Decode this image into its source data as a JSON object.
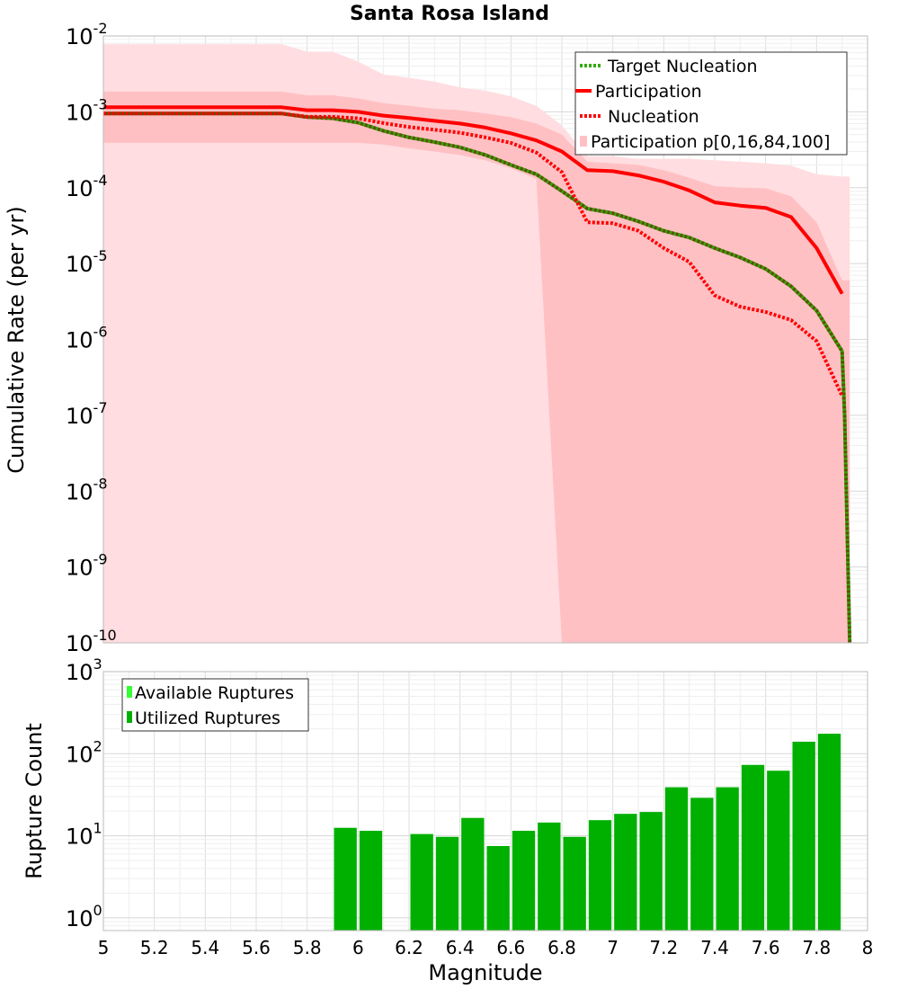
{
  "chart_data": [
    {
      "type": "line",
      "title": "Santa Rosa Island",
      "xlabel": "Magnitude",
      "ylabel": "Cumulative Rate (per yr)",
      "yscale": "log",
      "xlim": [
        5,
        8
      ],
      "ylim": [
        1e-10,
        0.01
      ],
      "x_ticks": [
        "5",
        "5.2",
        "5.4",
        "5.6",
        "5.8",
        "6",
        "6.2",
        "6.4",
        "6.6",
        "6.8",
        "7",
        "7.2",
        "7.4",
        "7.6",
        "7.8",
        "8"
      ],
      "y_ticks": [
        {
          "base": "10",
          "exp": "-10"
        },
        {
          "base": "10",
          "exp": "-9"
        },
        {
          "base": "10",
          "exp": "-8"
        },
        {
          "base": "10",
          "exp": "-7"
        },
        {
          "base": "10",
          "exp": "-6"
        },
        {
          "base": "10",
          "exp": "-5"
        },
        {
          "base": "10",
          "exp": "-4"
        },
        {
          "base": "10",
          "exp": "-3"
        },
        {
          "base": "10",
          "exp": "-2"
        }
      ],
      "grid": true,
      "legend_position": "top-right",
      "legend": [
        "Target Nucleation",
        "Participation",
        "Nucleation",
        "Participation p[0,16,84,100]"
      ],
      "x": [
        5.0,
        5.1,
        5.2,
        5.3,
        5.4,
        5.5,
        5.6,
        5.7,
        5.8,
        5.9,
        6.0,
        6.1,
        6.2,
        6.3,
        6.4,
        6.5,
        6.6,
        6.7,
        6.8,
        6.9,
        7.0,
        7.1,
        7.2,
        7.3,
        7.4,
        7.5,
        7.6,
        7.7,
        7.8,
        7.9
      ],
      "series": [
        {
          "name": "Target Nucleation",
          "style": "dotted",
          "color": "#33aa00",
          "values": [
            0.00095,
            0.00095,
            0.00095,
            0.00095,
            0.00095,
            0.00095,
            0.00095,
            0.00095,
            0.00085,
            0.00082,
            0.00072,
            0.00056,
            0.00046,
            0.0004,
            0.00034,
            0.00027,
            0.0002,
            0.00015,
            9e-05,
            5.3e-05,
            4.6e-05,
            3.6e-05,
            2.7e-05,
            2.2e-05,
            1.6e-05,
            1.2e-05,
            8.5e-06,
            5e-06,
            2.4e-06,
            7e-07
          ],
          "tail": [
            {
              "x": 7.9,
              "y": 7e-07
            },
            {
              "x": 7.91,
              "y": 1e-07
            },
            {
              "x": 7.93,
              "y": 1e-10
            }
          ]
        },
        {
          "name": "Participation",
          "style": "solid",
          "color": "#ff0000",
          "values": [
            0.00115,
            0.00115,
            0.00115,
            0.00115,
            0.00115,
            0.00115,
            0.00115,
            0.00115,
            0.00105,
            0.00105,
            0.001,
            0.00089,
            0.00083,
            0.00076,
            0.0007,
            0.00062,
            0.00052,
            0.00042,
            0.0003,
            0.00017,
            0.000165,
            0.000145,
            0.00012,
            9.2e-05,
            6.4e-05,
            5.8e-05,
            5.4e-05,
            4.1e-05,
            1.6e-05,
            4e-06
          ]
        },
        {
          "name": "Nucleation",
          "style": "dotted",
          "color": "#ff0000",
          "values": [
            0.00095,
            0.00095,
            0.00095,
            0.00095,
            0.00095,
            0.00095,
            0.00095,
            0.00095,
            0.00086,
            0.00086,
            0.00082,
            0.00071,
            0.00063,
            0.00058,
            0.00053,
            0.00046,
            0.00039,
            0.00029,
            0.00016,
            3.5e-05,
            3.4e-05,
            2.7e-05,
            1.6e-05,
            1.05e-05,
            3.8e-06,
            2.7e-06,
            2.3e-06,
            1.8e-06,
            9.5e-07,
            1.8e-07
          ]
        }
      ],
      "bands": [
        {
          "name": "p0-p100",
          "color": "#ffdde0",
          "lower": [
            1e-10,
            1e-10,
            1e-10,
            1e-10,
            1e-10,
            1e-10,
            1e-10,
            1e-10,
            1e-10,
            1e-10,
            1e-10,
            1e-10,
            1e-10,
            1e-10,
            1e-10,
            1e-10,
            1e-10,
            1e-10,
            1e-10,
            1e-10,
            1e-10,
            1e-10,
            1e-10,
            1e-10,
            1e-10,
            1e-10,
            1e-10,
            1e-10,
            1e-10,
            1e-10
          ],
          "upper": [
            0.0078,
            0.0078,
            0.0078,
            0.0078,
            0.0078,
            0.0078,
            0.0078,
            0.0078,
            0.0062,
            0.0062,
            0.0046,
            0.0031,
            0.0028,
            0.0025,
            0.0021,
            0.0019,
            0.0016,
            0.0012,
            0.00066,
            0.00026,
            0.00026,
            0.00024,
            0.00024,
            0.00024,
            0.00023,
            0.00022,
            0.00021,
            0.000195,
            0.00015,
            0.00014
          ]
        },
        {
          "name": "p16-p84",
          "color": "#ffc0c4",
          "lower": [
            0.00039,
            0.00039,
            0.00039,
            0.00039,
            0.00039,
            0.00039,
            0.00039,
            0.00039,
            0.00039,
            0.00039,
            0.00039,
            0.00037,
            0.00033,
            0.0003,
            0.00027,
            0.00023,
            0.00018,
            0.00013,
            1e-10,
            1e-10,
            1e-10,
            1e-10,
            1e-10,
            1e-10,
            1e-10,
            1e-10,
            1e-10,
            1e-10,
            1e-10,
            1e-10
          ],
          "upper": [
            0.00185,
            0.00185,
            0.00185,
            0.00185,
            0.00185,
            0.00185,
            0.00185,
            0.00185,
            0.00165,
            0.00165,
            0.0015,
            0.0013,
            0.0012,
            0.0011,
            0.00105,
            0.00095,
            0.00085,
            0.0007,
            0.0005,
            0.00022,
            0.00021,
            0.0002,
            0.00017,
            0.000135,
            0.000105,
            0.0001,
            9.8e-05,
            7.7e-05,
            3.5e-05,
            6e-06
          ]
        }
      ]
    },
    {
      "type": "bar",
      "xlabel": "Magnitude",
      "ylabel": "Rupture Count",
      "yscale": "log",
      "ylim": [
        0.7,
        1000
      ],
      "y_ticks": [
        {
          "base": "10",
          "exp": "0"
        },
        {
          "base": "10",
          "exp": "1"
        },
        {
          "base": "10",
          "exp": "2"
        },
        {
          "base": "10",
          "exp": "3"
        }
      ],
      "legend_position": "top-left",
      "legend": [
        "Available Ruptures",
        "Utilized Ruptures"
      ],
      "series": [
        {
          "name": "Utilized Ruptures",
          "color": "#00b000",
          "bars": [
            {
              "x": 5.95,
              "value": 12.5
            },
            {
              "x": 6.05,
              "value": 11.5
            },
            {
              "x": 6.25,
              "value": 10.5
            },
            {
              "x": 6.35,
              "value": 9.7
            },
            {
              "x": 6.45,
              "value": 16.5
            },
            {
              "x": 6.55,
              "value": 7.5
            },
            {
              "x": 6.65,
              "value": 11.5
            },
            {
              "x": 6.75,
              "value": 14.5
            },
            {
              "x": 6.85,
              "value": 9.7
            },
            {
              "x": 6.95,
              "value": 15.5
            },
            {
              "x": 7.05,
              "value": 18.5
            },
            {
              "x": 7.15,
              "value": 19.5
            },
            {
              "x": 7.25,
              "value": 39
            },
            {
              "x": 7.35,
              "value": 29
            },
            {
              "x": 7.45,
              "value": 39
            },
            {
              "x": 7.55,
              "value": 73
            },
            {
              "x": 7.65,
              "value": 62
            },
            {
              "x": 7.75,
              "value": 140
            },
            {
              "x": 7.85,
              "value": 175
            }
          ]
        },
        {
          "name": "Available Ruptures",
          "color": "#33ff33",
          "bars": []
        }
      ]
    }
  ],
  "colors": {
    "available": "#33ff33",
    "utilized": "#00b000",
    "participation": "#ff0000",
    "target": "#33aa00",
    "band_outer": "#ffdde0",
    "band_inner": "#ffc0c4"
  }
}
